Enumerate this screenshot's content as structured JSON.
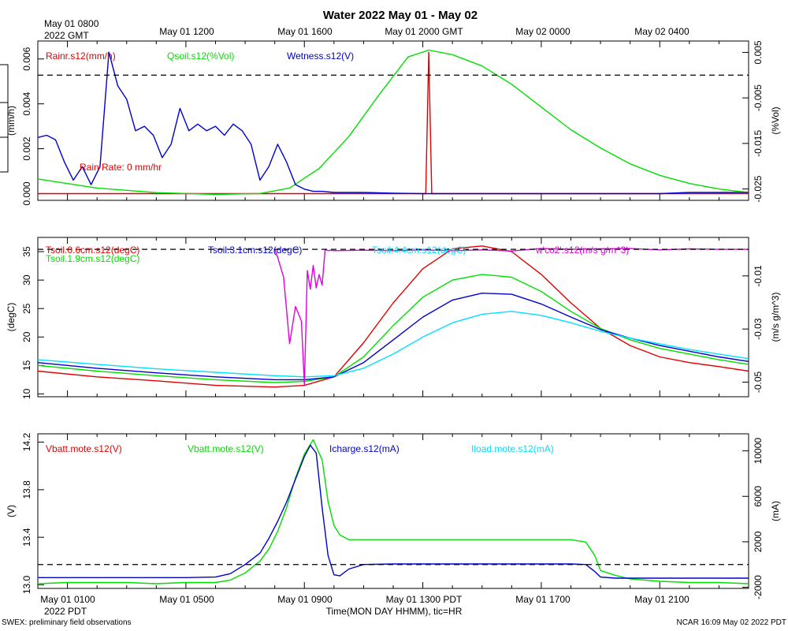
{
  "title": "Water 2022 May 01 - May 02",
  "top_time_axis": {
    "first_label_line1": "May 01 0800",
    "first_label_line2": "2022 GMT",
    "labels": [
      "May 01 1200",
      "May 01 1600",
      "May 01 2000 GMT",
      "May 02 0000",
      "May 02 0400"
    ]
  },
  "bottom_time_axis": {
    "labels": [
      "May 01 0100",
      "May 01 0500",
      "May 01 0900",
      "May 01 1300 PDT",
      "May 01 1700",
      "May 01 2100"
    ],
    "first_label_line2": "2022 PDT",
    "xlabel": "Time(MON DAY HHMM), tic=HR"
  },
  "footer_left": "SWEX: preliminary field observations",
  "footer_right": "NCAR 16:09 May 02 2022 PDT",
  "colors": {
    "red": "#e00000",
    "green": "#00e000",
    "blue": "#0000d0",
    "cyan": "#00e0ff",
    "magenta": "#e000e0",
    "black": "#000000"
  },
  "chart_data": [
    {
      "type": "line",
      "name": "panel-water",
      "time_range_hours_pdt": [
        0,
        24
      ],
      "left_axis": {
        "label": "(mm/h)",
        "range": [
          -0.0003,
          0.0068
        ],
        "ticks": [
          "0.000",
          "0.002",
          "0.004",
          "0.006"
        ],
        "tick_values": [
          0,
          0.002,
          0.004,
          0.006
        ]
      },
      "right_axis": {
        "label": "(%Vol)",
        "range": [
          -0.0275,
          0.0075
        ],
        "ticks": [
          "-0.025",
          "-0.015",
          "-0.005",
          "0.005"
        ],
        "tick_values": [
          -0.025,
          -0.015,
          -0.005,
          0.005
        ]
      },
      "legend": [
        {
          "label": "Rainr.s12(mm/h)",
          "color": "#e00000"
        },
        {
          "label": "Qsoil.s12(%Vol)",
          "color": "#00e000"
        },
        {
          "label": "Wetness.s12(V)",
          "color": "#0000d0"
        }
      ],
      "annotation": "Rain Rate: 0 mm/hr",
      "reference_line": {
        "axis": "right",
        "value": 0.0
      },
      "series": [
        {
          "name": "Rainr.s12",
          "axis": "left",
          "color": "#e00000",
          "x": [
            0,
            13.0,
            13.1,
            13.2,
            13.3,
            24
          ],
          "y": [
            0,
            0,
            0,
            0.0063,
            0,
            0
          ]
        },
        {
          "name": "Qsoil.s12",
          "axis": "right",
          "color": "#00e000",
          "x": [
            0,
            2,
            4,
            6,
            7.5,
            8.5,
            9.5,
            10.5,
            11.5,
            12.5,
            13.2,
            14,
            15,
            16,
            17,
            18,
            19,
            20,
            21,
            22,
            23,
            24
          ],
          "y": [
            -0.0228,
            -0.0248,
            -0.0258,
            -0.0262,
            -0.026,
            -0.0248,
            -0.0205,
            -0.0135,
            -0.0045,
            0.004,
            0.0055,
            0.0045,
            0.002,
            -0.002,
            -0.007,
            -0.012,
            -0.016,
            -0.0195,
            -0.022,
            -0.0238,
            -0.025,
            -0.0258
          ]
        },
        {
          "name": "Wetness.s12",
          "axis": "left",
          "color": "#0000d0",
          "x": [
            0,
            0.3,
            0.6,
            0.9,
            1.2,
            1.5,
            1.8,
            2.1,
            2.4,
            2.7,
            3.0,
            3.3,
            3.6,
            3.9,
            4.2,
            4.5,
            4.8,
            5.1,
            5.4,
            5.7,
            6.0,
            6.3,
            6.6,
            6.9,
            7.2,
            7.5,
            7.8,
            8.1,
            8.4,
            8.7,
            9.0,
            9.3,
            9.6,
            10,
            11,
            12,
            13,
            14,
            15,
            16,
            17,
            18,
            19,
            20,
            21,
            22,
            23,
            24
          ],
          "y": [
            0.0025,
            0.0026,
            0.0024,
            0.0014,
            0.0006,
            0.0012,
            0.0004,
            0.0012,
            0.0063,
            0.0048,
            0.0042,
            0.0028,
            0.003,
            0.0026,
            0.0016,
            0.0022,
            0.0038,
            0.0028,
            0.0031,
            0.0028,
            0.003,
            0.0026,
            0.0031,
            0.0028,
            0.0022,
            0.0006,
            0.0012,
            0.0022,
            0.0014,
            0.0004,
            0.0002,
            0.0001,
            0.0001,
            5e-05,
            5e-05,
            2e-05,
            0.0,
            0.0,
            0.0,
            0.0,
            0.0,
            0.0,
            0.0,
            0.0,
            0.0,
            5e-05,
            5e-05,
            6e-05
          ]
        }
      ]
    },
    {
      "type": "line",
      "name": "panel-soil-temp",
      "time_range_hours_pdt": [
        0,
        24
      ],
      "left_axis": {
        "label": "(degC)",
        "range": [
          9.5,
          37.5
        ],
        "ticks": [
          "10",
          "15",
          "20",
          "25",
          "30",
          "35"
        ],
        "tick_values": [
          10,
          15,
          20,
          25,
          30,
          35
        ]
      },
      "right_axis": {
        "label": "(m/s g/m^3)",
        "range": [
          -0.0555,
          0.0045
        ],
        "ticks": [
          "-0.05",
          "-0.03",
          "-0.01"
        ],
        "tick_values": [
          -0.05,
          -0.03,
          -0.01
        ]
      },
      "legend": [
        {
          "label": "Tsoil.0.6cm.s12(degC)",
          "color": "#e00000"
        },
        {
          "label": "Tsoil.1.9cm.s12(degC)",
          "color": "#00e000"
        },
        {
          "label": "Tsoil.3.1cm.s12(degC)",
          "color": "#0000d0"
        },
        {
          "label": "Tsoil.4.4cm.s12(degC)",
          "color": "#00e0ff"
        },
        {
          "label": "w'co2'.s12(m/s g/m^3)",
          "color": "#e000e0"
        }
      ],
      "reference_line": {
        "axis": "right",
        "value": 0.0
      },
      "series": [
        {
          "name": "Tsoil.0.6cm.s12",
          "axis": "left",
          "color": "#e00000",
          "x": [
            0,
            2,
            4,
            6,
            8,
            9,
            10,
            11,
            12,
            13,
            14,
            15,
            16,
            17,
            18,
            19,
            20,
            21,
            22,
            23,
            24
          ],
          "y": [
            14.0,
            13.0,
            12.3,
            11.5,
            11.2,
            11.5,
            13.0,
            19.0,
            26.0,
            32.0,
            35.5,
            36.0,
            35.0,
            31.0,
            26.0,
            21.5,
            18.5,
            16.5,
            15.5,
            14.8,
            14.0
          ]
        },
        {
          "name": "Tsoil.1.9cm.s12",
          "axis": "left",
          "color": "#00e000",
          "x": [
            0,
            2,
            4,
            6,
            8,
            9,
            10,
            11,
            12,
            13,
            14,
            15,
            16,
            17,
            18,
            19,
            20,
            21,
            22,
            23,
            24
          ],
          "y": [
            15.0,
            14.0,
            13.2,
            12.5,
            12.0,
            12.2,
            13.0,
            16.5,
            22.0,
            27.0,
            30.0,
            31.0,
            30.5,
            28.0,
            24.5,
            21.5,
            19.5,
            18.0,
            17.0,
            16.0,
            15.2
          ]
        },
        {
          "name": "Tsoil.3.1cm.s12",
          "axis": "left",
          "color": "#0000d0",
          "x": [
            0,
            2,
            4,
            6,
            8,
            9,
            10,
            11,
            12,
            13,
            14,
            15,
            16,
            17,
            18,
            19,
            20,
            21,
            22,
            23,
            24
          ],
          "y": [
            15.5,
            14.5,
            13.7,
            13.0,
            12.5,
            12.5,
            13.0,
            15.5,
            19.5,
            23.5,
            26.5,
            27.7,
            27.5,
            25.8,
            23.5,
            21.3,
            19.8,
            18.5,
            17.5,
            16.5,
            15.7
          ]
        },
        {
          "name": "Tsoil.4.4cm.s12",
          "axis": "left",
          "color": "#00e0ff",
          "x": [
            0,
            2,
            4,
            6,
            8,
            9,
            10,
            11,
            12,
            13,
            14,
            15,
            16,
            17,
            18,
            19,
            20,
            21,
            22,
            23,
            24
          ],
          "y": [
            16.0,
            15.2,
            14.4,
            13.8,
            13.2,
            13.0,
            13.2,
            14.5,
            17.0,
            20.0,
            22.5,
            24.0,
            24.5,
            23.8,
            22.5,
            21.0,
            19.8,
            18.8,
            17.8,
            17.0,
            16.2
          ]
        },
        {
          "name": "w'co2'.s12",
          "axis": "right",
          "color": "#e000e0",
          "x": [
            8.0,
            8.1,
            8.3,
            8.5,
            8.7,
            8.9,
            9.0,
            9.1,
            9.2,
            9.3,
            9.4,
            9.5,
            9.6,
            9.7,
            9.8,
            9.9,
            10,
            11,
            12,
            13,
            14,
            15,
            16,
            17,
            18,
            19,
            20,
            21,
            22,
            23,
            24
          ],
          "y": [
            0.0,
            -0.003,
            -0.0105,
            -0.0355,
            -0.0215,
            -0.027,
            -0.051,
            -0.008,
            -0.015,
            -0.006,
            -0.0145,
            -0.0095,
            -0.0135,
            0.0,
            -0.0005,
            -0.0003,
            -0.0005,
            -0.0003,
            -0.0005,
            -0.0002,
            -0.0005,
            -0.0002,
            -0.0006,
            0.0003,
            0.0,
            0.0002,
            0.0003,
            -0.0002,
            0.0002,
            0.0,
            0.0
          ]
        }
      ]
    },
    {
      "type": "line",
      "name": "panel-power",
      "time_range_hours_pdt": [
        0,
        24
      ],
      "left_axis": {
        "label": "(V)",
        "range": [
          12.97,
          14.27
        ],
        "ticks": [
          "13.0",
          "13.4",
          "13.8",
          "14.2"
        ],
        "tick_values": [
          13.0,
          13.4,
          13.8,
          14.2
        ]
      },
      "right_axis": {
        "label": "(mA)",
        "range": [
          -2100,
          11500
        ],
        "ticks": [
          "-2000",
          "2000",
          "6000",
          "10000"
        ],
        "tick_values": [
          -2000,
          2000,
          6000,
          10000
        ]
      },
      "legend": [
        {
          "label": "Vbatt.mote.s12(V)",
          "color": "#e00000"
        },
        {
          "label": "Vbatt.mote.s12(V)",
          "color": "#00e000"
        },
        {
          "label": "Icharge.s12(mA)",
          "color": "#0000d0"
        },
        {
          "label": "Iload.mote.s12(mA)",
          "color": "#00e0ff"
        }
      ],
      "reference_line": {
        "axis": "right",
        "value": 0
      },
      "series": [
        {
          "name": "Vbatt.mote.s12",
          "axis": "left",
          "color": "#00e000",
          "x": [
            0,
            1,
            2,
            3,
            4,
            5,
            6,
            6.5,
            7,
            7.5,
            7.8,
            8.1,
            8.4,
            8.7,
            9.0,
            9.3,
            9.6,
            9.8,
            10.0,
            10.2,
            10.5,
            11,
            12,
            13,
            14,
            15,
            16,
            17,
            18,
            18.5,
            18.8,
            19.0,
            19.5,
            20,
            21,
            22,
            23,
            24
          ],
          "y": [
            13.01,
            13.02,
            13.02,
            13.02,
            13.01,
            13.02,
            13.02,
            13.04,
            13.1,
            13.2,
            13.3,
            13.45,
            13.65,
            13.9,
            14.1,
            14.22,
            14.05,
            13.7,
            13.5,
            13.42,
            13.38,
            13.38,
            13.38,
            13.38,
            13.38,
            13.38,
            13.38,
            13.38,
            13.38,
            13.36,
            13.25,
            13.12,
            13.08,
            13.05,
            13.03,
            13.02,
            13.02,
            13.01
          ]
        },
        {
          "name": "Icharge.s12",
          "axis": "right",
          "color": "#0000d0",
          "x": [
            0,
            1,
            2,
            3,
            4,
            5,
            6,
            6.5,
            7,
            7.5,
            7.8,
            8.1,
            8.4,
            8.7,
            9.0,
            9.2,
            9.4,
            9.6,
            9.8,
            10.0,
            10.2,
            10.5,
            11,
            12,
            13,
            14,
            15,
            16,
            17,
            18,
            18.5,
            18.8,
            19.0,
            19.5,
            20,
            21,
            22,
            23,
            24
          ],
          "y": [
            -1150,
            -1150,
            -1150,
            -1150,
            -1150,
            -1150,
            -1100,
            -800,
            0,
            1000,
            2300,
            3800,
            5500,
            7500,
            9500,
            10500,
            9800,
            5000,
            800,
            -900,
            -1000,
            -400,
            0,
            50,
            50,
            50,
            50,
            50,
            50,
            50,
            0,
            -600,
            -1100,
            -1200,
            -1200,
            -1200,
            -1200,
            -1200,
            -1200
          ]
        }
      ]
    }
  ]
}
